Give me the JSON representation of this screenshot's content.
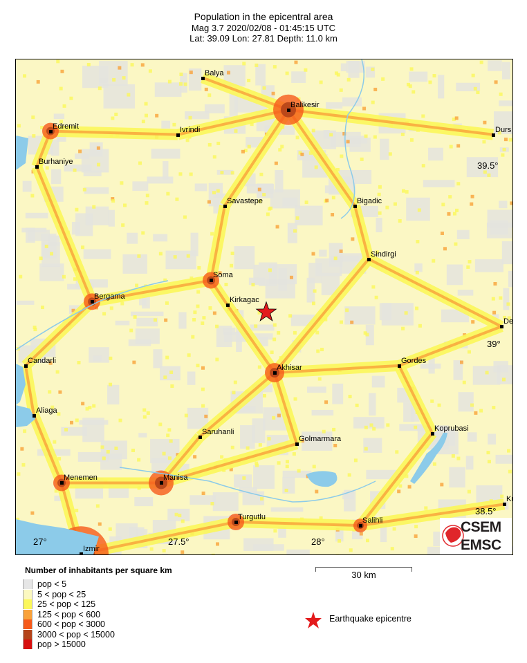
{
  "title": {
    "line1": "Population in the epicentral area",
    "line2": "Mag 3.7  2020/02/08 - 01:45:15 UTC",
    "line3": "Lat: 39.09    Lon:  27.81    Depth:  11.0 km"
  },
  "epicentre": {
    "lat": 39.09,
    "lon": 27.81,
    "color": "#e31a1c"
  },
  "axes": {
    "lon_labels": [
      "27°",
      "27.5°",
      "28°"
    ],
    "lat_labels": [
      "39.5°",
      "39°",
      "38.5°"
    ]
  },
  "cities": [
    {
      "name": "Balya",
      "lat": 39.75,
      "lon": 27.58
    },
    {
      "name": "Balikesir",
      "lat": 39.66,
      "lon": 27.89
    },
    {
      "name": "Edremit",
      "lat": 39.6,
      "lon": 27.03
    },
    {
      "name": "Ivrindi",
      "lat": 39.59,
      "lon": 27.49
    },
    {
      "name": "Durs",
      "lat": 39.59,
      "lon": 28.63
    },
    {
      "name": "Burhaniye",
      "lat": 39.5,
      "lon": 26.98
    },
    {
      "name": "Savastepe",
      "lat": 39.39,
      "lon": 27.66
    },
    {
      "name": "Bigadic",
      "lat": 39.39,
      "lon": 28.13
    },
    {
      "name": "Sindirgi",
      "lat": 39.24,
      "lon": 28.18
    },
    {
      "name": "Soma",
      "lat": 39.18,
      "lon": 27.61
    },
    {
      "name": "Bergama",
      "lat": 39.12,
      "lon": 27.18
    },
    {
      "name": "Kirkagac",
      "lat": 39.11,
      "lon": 27.67
    },
    {
      "name": "De",
      "lat": 39.05,
      "lon": 28.66
    },
    {
      "name": "Candarli",
      "lat": 38.94,
      "lon": 26.94
    },
    {
      "name": "Akhisar",
      "lat": 38.92,
      "lon": 27.84
    },
    {
      "name": "Gordes",
      "lat": 38.94,
      "lon": 28.29
    },
    {
      "name": "Aliaga",
      "lat": 38.8,
      "lon": 26.97
    },
    {
      "name": "Koprubasi",
      "lat": 38.75,
      "lon": 28.41
    },
    {
      "name": "Saruhanli",
      "lat": 38.74,
      "lon": 27.57
    },
    {
      "name": "Golmarmara",
      "lat": 38.72,
      "lon": 27.92
    },
    {
      "name": "Menemen",
      "lat": 38.61,
      "lon": 27.07
    },
    {
      "name": "Manisa",
      "lat": 38.61,
      "lon": 27.43
    },
    {
      "name": "Kul",
      "lat": 38.55,
      "lon": 28.67
    },
    {
      "name": "Turgutlu",
      "lat": 38.5,
      "lon": 27.7
    },
    {
      "name": "Salihli",
      "lat": 38.49,
      "lon": 28.15
    },
    {
      "name": "Izmir",
      "lat": 38.41,
      "lon": 27.14
    }
  ],
  "legend": {
    "title": "Number of inhabitants per square km",
    "classes": [
      {
        "label": "pop < 5",
        "color": "#e6e6e6"
      },
      {
        "label": "5 < pop < 25",
        "color": "#fbf8c0"
      },
      {
        "label": "25 < pop < 125",
        "color": "#fbf75a"
      },
      {
        "label": "125 < pop < 600",
        "color": "#f9a23a"
      },
      {
        "label": "600 < pop < 3000",
        "color": "#f65a1a"
      },
      {
        "label": "3000 < pop < 15000",
        "color": "#b4441a"
      },
      {
        "label": "pop > 15000",
        "color": "#d7100f"
      }
    ],
    "epicentre_label": "Earthquake epicentre"
  },
  "scale_bar": "30 km",
  "logo": {
    "top": "CSEM",
    "bottom": "EMSC",
    "color": "#e0262b"
  },
  "water_color": "#8ccbe9"
}
